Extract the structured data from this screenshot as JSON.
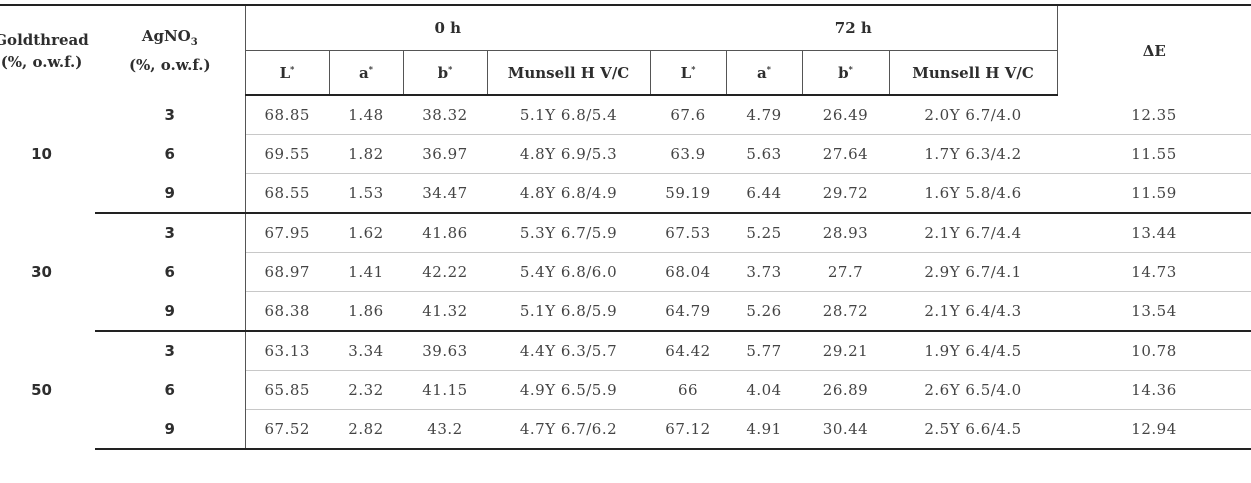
{
  "headers": {
    "goldthread_line1": "Goldthread",
    "goldthread_line2": "(%, o.w.f.)",
    "agno3_main": "AgNO",
    "agno3_sub": "3",
    "agno3_line2": "(%, o.w.f.)",
    "group_0h": "0 h",
    "group_72h": "72 h",
    "delta_e": "ΔE",
    "L": "L",
    "a": "a",
    "b": "b",
    "star": "*",
    "munsell": "Munsell H V/C"
  },
  "groups": [
    {
      "goldthread": "10",
      "rows": [
        {
          "agno3": "3",
          "L0": "68.85",
          "a0": "1.48",
          "b0": "38.32",
          "m0": "5.1Y 6.8/5.4",
          "L72": "67.6",
          "a72": "4.79",
          "b72": "26.49",
          "m72": "2.0Y 6.7/4.0",
          "dE": "12.35"
        },
        {
          "agno3": "6",
          "L0": "69.55",
          "a0": "1.82",
          "b0": "36.97",
          "m0": "4.8Y 6.9/5.3",
          "L72": "63.9",
          "a72": "5.63",
          "b72": "27.64",
          "m72": "1.7Y 6.3/4.2",
          "dE": "11.55"
        },
        {
          "agno3": "9",
          "L0": "68.55",
          "a0": "1.53",
          "b0": "34.47",
          "m0": "4.8Y 6.8/4.9",
          "L72": "59.19",
          "a72": "6.44",
          "b72": "29.72",
          "m72": "1.6Y 5.8/4.6",
          "dE": "11.59"
        }
      ]
    },
    {
      "goldthread": "30",
      "rows": [
        {
          "agno3": "3",
          "L0": "67.95",
          "a0": "1.62",
          "b0": "41.86",
          "m0": "5.3Y 6.7/5.9",
          "L72": "67.53",
          "a72": "5.25",
          "b72": "28.93",
          "m72": "2.1Y 6.7/4.4",
          "dE": "13.44"
        },
        {
          "agno3": "6",
          "L0": "68.97",
          "a0": "1.41",
          "b0": "42.22",
          "m0": "5.4Y 6.8/6.0",
          "L72": "68.04",
          "a72": "3.73",
          "b72": "27.7",
          "m72": "2.9Y 6.7/4.1",
          "dE": "14.73"
        },
        {
          "agno3": "9",
          "L0": "68.38",
          "a0": "1.86",
          "b0": "41.32",
          "m0": "5.1Y 6.8/5.9",
          "L72": "64.79",
          "a72": "5.26",
          "b72": "28.72",
          "m72": "2.1Y 6.4/4.3",
          "dE": "13.54"
        }
      ]
    },
    {
      "goldthread": "50",
      "rows": [
        {
          "agno3": "3",
          "L0": "63.13",
          "a0": "3.34",
          "b0": "39.63",
          "m0": "4.4Y 6.3/5.7",
          "L72": "64.42",
          "a72": "5.77",
          "b72": "29.21",
          "m72": "1.9Y 6.4/4.5",
          "dE": "10.78"
        },
        {
          "agno3": "6",
          "L0": "65.85",
          "a0": "2.32",
          "b0": "41.15",
          "m0": "4.9Y 6.5/5.9",
          "L72": "66",
          "a72": "4.04",
          "b72": "26.89",
          "m72": "2.6Y 6.5/4.0",
          "dE": "14.36"
        },
        {
          "agno3": "9",
          "L0": "67.52",
          "a0": "2.82",
          "b0": "43.2",
          "m0": "4.7Y 6.7/6.2",
          "L72": "67.12",
          "a72": "4.91",
          "b72": "30.44",
          "m72": "2.5Y 6.6/4.5",
          "dE": "12.94"
        }
      ]
    }
  ]
}
